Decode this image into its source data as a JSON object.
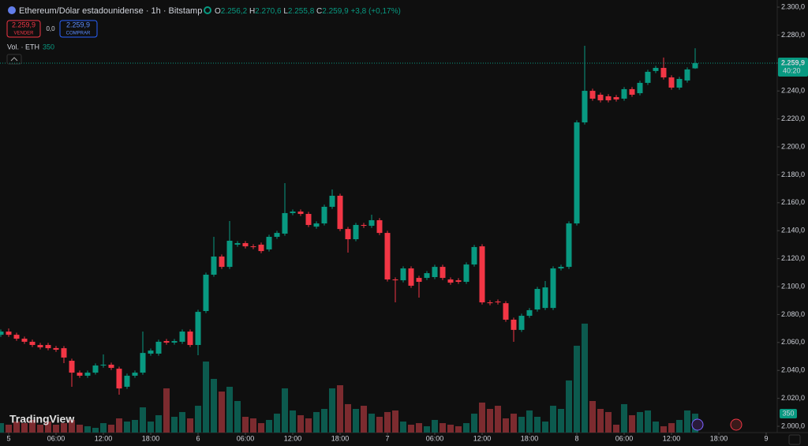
{
  "chart_data": {
    "type": "candlestick",
    "header": {
      "symbol": "Ethereum/Dólar estadounidense · 1h · Bitstamp",
      "o": "O",
      "open": "2.256,2",
      "h": "H",
      "high": "2.270,6",
      "l": "L",
      "low": "2.255,8",
      "c": "C",
      "close": "2.259,9",
      "change": "+3,8 (+0,17%)"
    },
    "trade": {
      "sell_price": "2.259,9",
      "sell": "VENDER",
      "spread": "0,0",
      "buy_price": "2.259,9",
      "buy": "COMPRAR"
    },
    "volume_title": "Vol. · ETH",
    "logo": "TradingView",
    "colors": {
      "up": "#089981",
      "down": "#f23645",
      "up_volume": "#0c5a4e",
      "down_volume": "#7c2b2f"
    },
    "price_label": {
      "value": 2259.9,
      "label": "2.259,9",
      "timer": "40:20"
    },
    "x": [
      -1,
      0,
      1,
      2,
      3,
      4,
      5,
      6,
      7,
      8,
      9,
      10,
      11,
      12,
      13,
      14,
      15,
      16,
      17,
      18,
      19,
      20,
      21,
      22,
      23,
      24,
      25,
      26,
      27,
      28,
      29,
      30,
      31,
      32,
      33,
      34,
      35,
      36,
      37,
      38,
      39,
      40,
      41,
      42,
      43,
      44,
      45,
      46,
      47,
      48,
      49,
      50,
      51,
      52,
      53,
      54,
      55,
      56,
      57,
      58,
      59,
      60,
      61,
      62,
      63,
      64,
      65,
      66,
      67,
      68,
      69,
      70,
      71,
      72,
      73,
      74,
      75,
      76,
      77,
      78,
      79,
      80,
      81,
      82,
      83,
      84,
      85,
      86,
      87
    ],
    "open": [
      2065.5,
      2067.8,
      2065.5,
      2062.7,
      2060.5,
      2058.2,
      2058.2,
      2056.0,
      2055.9,
      2046.9,
      2038.4,
      2036.2,
      2038.4,
      2043.5,
      2044.1,
      2041.2,
      2028.3,
      2036.2,
      2038.4,
      2052.0,
      2052.0,
      2061.0,
      2059.9,
      2060.5,
      2067.8,
      2058.2,
      2082.5,
      2108.5,
      2121.5,
      2114.1,
      2130.0,
      2131.1,
      2128.8,
      2130.0,
      2126.6,
      2135.6,
      2137.9,
      2152.6,
      2153.7,
      2152.0,
      2142.9,
      2145.2,
      2157.1,
      2165.0,
      2141.2,
      2133.9,
      2144.1,
      2143.5,
      2147.5,
      2138.4,
      2105.1,
      2104.5,
      2113.0,
      2106.2,
      2106.2,
      2106.8,
      2114.1,
      2105.1,
      2104.5,
      2103.4,
      2115.8,
      2128.8,
      2088.7,
      2089.3,
      2088.1,
      2076.3,
      2069.0,
      2079.1,
      2083.6,
      2084.7,
      2084.7,
      2113.0,
      2114.1,
      2145.2,
      2217.5,
      2240.1,
      2237.3,
      2236.2,
      2235.6,
      2234.5,
      2241.3,
      2238.4,
      2245.8,
      2254.3,
      2256.5,
      2249.7,
      2242.4,
      2247.5,
      2256.2
    ],
    "high": [
      2069.3,
      2070.0,
      2067.0,
      2064.2,
      2062.0,
      2059.7,
      2059.7,
      2057.5,
      2057.4,
      2048.4,
      2039.9,
      2039.9,
      2045.0,
      2051.4,
      2045.6,
      2042.7,
      2037.7,
      2039.9,
      2067.8,
      2055.7,
      2062.0,
      2062.5,
      2062.5,
      2069.3,
      2069.3,
      2083.4,
      2110.0,
      2135.6,
      2123.0,
      2146.9,
      2132.6,
      2132.6,
      2130.3,
      2131.5,
      2137.1,
      2139.9,
      2174.0,
      2155.2,
      2155.2,
      2153.5,
      2146.7,
      2158.6,
      2169.5,
      2166.5,
      2142.7,
      2145.6,
      2145.6,
      2151.4,
      2149.0,
      2139.9,
      2106.6,
      2114.5,
      2114.5,
      2107.7,
      2111.1,
      2115.6,
      2115.6,
      2106.6,
      2106.0,
      2117.3,
      2129.8,
      2130.3,
      2090.2,
      2090.8,
      2089.6,
      2077.8,
      2080.6,
      2084.6,
      2099.8,
      2104.0,
      2114.5,
      2115.6,
      2146.7,
      2219.0,
      2272.3,
      2241.6,
      2238.8,
      2237.7,
      2237.1,
      2242.8,
      2242.8,
      2247.3,
      2255.2,
      2258.0,
      2263.9,
      2251.2,
      2250.1,
      2256.9,
      2270.6
    ],
    "low": [
      2064.0,
      2064.0,
      2061.2,
      2059.0,
      2056.7,
      2055.0,
      2054.4,
      2053.3,
      2045.2,
      2028.3,
      2034.7,
      2034.7,
      2037.0,
      2042.0,
      2040.3,
      2022.6,
      2026.8,
      2034.7,
      2036.9,
      2050.5,
      2050.5,
      2058.4,
      2058.4,
      2059.0,
      2056.7,
      2050.9,
      2081.0,
      2107.0,
      2112.6,
      2112.6,
      2128.5,
      2127.3,
      2126.8,
      2123.9,
      2125.1,
      2134.1,
      2136.4,
      2151.1,
      2150.5,
      2142.6,
      2141.4,
      2143.7,
      2155.6,
      2139.7,
      2124.3,
      2132.4,
      2142.0,
      2142.0,
      2136.9,
      2103.6,
      2088.7,
      2103.0,
      2099.1,
      2092.1,
      2104.7,
      2105.3,
      2104.7,
      2101.3,
      2101.9,
      2101.9,
      2114.3,
      2087.2,
      2086.6,
      2087.2,
      2074.8,
      2060.5,
      2067.5,
      2077.6,
      2082.1,
      2083.2,
      2083.2,
      2111.5,
      2112.6,
      2143.7,
      2216.0,
      2233.0,
      2231.8,
      2231.8,
      2232.4,
      2233.0,
      2235.8,
      2236.9,
      2244.3,
      2252.8,
      2248.2,
      2240.9,
      2240.9,
      2246.0,
      2255.8
    ],
    "close": [
      2067.8,
      2065.5,
      2062.7,
      2060.5,
      2058.2,
      2056.5,
      2055.9,
      2054.8,
      2049.2,
      2038.4,
      2036.2,
      2038.4,
      2043.5,
      2044.1,
      2041.8,
      2027.1,
      2036.2,
      2038.4,
      2052.5,
      2054.2,
      2060.5,
      2059.9,
      2061.0,
      2067.8,
      2058.2,
      2081.9,
      2108.5,
      2121.5,
      2114.1,
      2132.8,
      2131.1,
      2128.8,
      2128.3,
      2125.4,
      2135.6,
      2138.4,
      2152.6,
      2153.7,
      2152.0,
      2144.1,
      2145.2,
      2157.1,
      2165.0,
      2141.2,
      2133.9,
      2144.1,
      2143.5,
      2147.5,
      2138.4,
      2105.1,
      2104.5,
      2113.0,
      2100.6,
      2103.4,
      2109.6,
      2114.1,
      2106.2,
      2102.8,
      2103.4,
      2115.8,
      2128.3,
      2088.7,
      2088.1,
      2088.7,
      2076.3,
      2069.0,
      2079.1,
      2083.1,
      2098.3,
      2099.4,
      2113.0,
      2114.1,
      2145.2,
      2217.5,
      2240.1,
      2234.5,
      2233.3,
      2233.3,
      2233.9,
      2241.3,
      2237.3,
      2245.8,
      2253.7,
      2256.5,
      2249.7,
      2242.4,
      2248.6,
      2255.4,
      2259.9
    ],
    "volume": [
      175,
      146,
      204,
      175,
      234,
      146,
      204,
      146,
      175,
      234,
      146,
      117,
      88,
      175,
      146,
      263,
      204,
      234,
      467,
      204,
      321,
      818,
      292,
      380,
      263,
      496,
      1314,
      993,
      759,
      847,
      584,
      292,
      263,
      175,
      234,
      350,
      818,
      409,
      321,
      263,
      380,
      438,
      818,
      876,
      526,
      438,
      496,
      350,
      292,
      380,
      409,
      204,
      146,
      175,
      117,
      234,
      175,
      146,
      117,
      175,
      350,
      555,
      438,
      496,
      263,
      350,
      292,
      409,
      292,
      204,
      496,
      438,
      964,
      1606,
      2015,
      584,
      438,
      380,
      146,
      526,
      321,
      380,
      409,
      204,
      117,
      175,
      234,
      409,
      350
    ],
    "volume_ylim": [
      0,
      8000
    ],
    "xlim": [
      -1.1,
      97.4
    ],
    "xticks": [
      {
        "value": 0,
        "label": "5"
      },
      {
        "value": 6,
        "label": "06:00"
      },
      {
        "value": 12,
        "label": "12:00"
      },
      {
        "value": 18,
        "label": "18:00"
      },
      {
        "value": 24,
        "label": "6"
      },
      {
        "value": 30,
        "label": "06:00"
      },
      {
        "value": 36,
        "label": "12:00"
      },
      {
        "value": 42,
        "label": "18:00"
      },
      {
        "value": 48,
        "label": "7"
      },
      {
        "value": 54,
        "label": "06:00"
      },
      {
        "value": 60,
        "label": "12:00"
      },
      {
        "value": 66,
        "label": "18:00"
      },
      {
        "value": 72,
        "label": "8"
      },
      {
        "value": 78,
        "label": "06:00"
      },
      {
        "value": 84,
        "label": "12:00"
      },
      {
        "value": 90,
        "label": "18:00"
      },
      {
        "value": 96,
        "label": "9"
      }
    ],
    "ylim": [
      1995.5,
      2305.1
    ],
    "yticks": [
      {
        "value": 2000,
        "label": "2.000,0"
      },
      {
        "value": 2020,
        "label": "2.020,0"
      },
      {
        "value": 2040,
        "label": "2.040,0"
      },
      {
        "value": 2060,
        "label": "2.060,0"
      },
      {
        "value": 2080,
        "label": "2.080,0"
      },
      {
        "value": 2100,
        "label": "2.100,0"
      },
      {
        "value": 2120,
        "label": "2.120,0"
      },
      {
        "value": 2140,
        "label": "2.140,0"
      },
      {
        "value": 2160,
        "label": "2.160,0"
      },
      {
        "value": 2180,
        "label": "2.180,0"
      },
      {
        "value": 2200,
        "label": "2.200,0"
      },
      {
        "value": 2220,
        "label": "2.220,0"
      },
      {
        "value": 2240,
        "label": "2.240,0"
      },
      {
        "value": 2260,
        "label": "2.260,0"
      },
      {
        "value": 2280,
        "label": "2.280,0"
      },
      {
        "value": 2300,
        "label": "2.300,0"
      }
    ]
  }
}
